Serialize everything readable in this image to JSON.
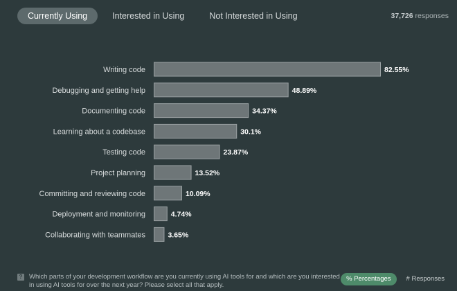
{
  "tabs": [
    {
      "label": "Currently Using",
      "active": true
    },
    {
      "label": "Interested in Using",
      "active": false
    },
    {
      "label": "Not Interested in Using",
      "active": false
    }
  ],
  "responses": {
    "count": "37,726",
    "label": "responses"
  },
  "chart_data": {
    "type": "bar",
    "orientation": "horizontal",
    "title": "",
    "xlabel": "",
    "ylabel": "",
    "xlim": [
      0,
      82.55
    ],
    "categories": [
      "Writing code",
      "Debugging and getting help",
      "Documenting code",
      "Learning about a codebase",
      "Testing code",
      "Project planning",
      "Committing and reviewing code",
      "Deployment and monitoring",
      "Collaborating with teammates"
    ],
    "values": [
      82.55,
      48.89,
      34.37,
      30.1,
      23.87,
      13.52,
      10.09,
      4.74,
      3.65
    ],
    "value_labels": [
      "82.55%",
      "48.89%",
      "34.37%",
      "30.1%",
      "23.87%",
      "13.52%",
      "10.09%",
      "4.74%",
      "3.65%"
    ],
    "colors": {
      "bar_fill": "#6e7678",
      "bar_stroke": "#9aa1a3"
    }
  },
  "footer": {
    "help_icon_glyph": "?",
    "question": "Which parts of your development workflow are you currently using AI tools for and which are you interested in using AI tools for over the next year? Please select all that apply."
  },
  "view_toggle": [
    {
      "label": "% Percentages",
      "active": true
    },
    {
      "label": "# Responses",
      "active": false
    }
  ],
  "colors": {
    "background": "#2d3a3c",
    "active_tab": "#5d6a6c",
    "active_toggle": "#4e8b6a"
  }
}
